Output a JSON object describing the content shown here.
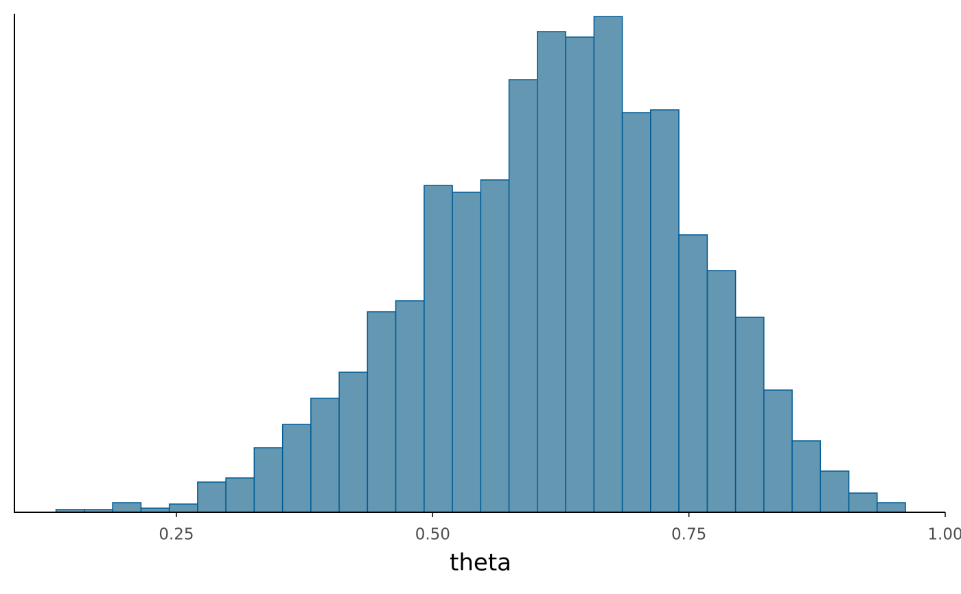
{
  "chart_data": {
    "type": "histogram",
    "x_label": "theta",
    "bins": [
      0.1326,
      0.1602,
      0.1878,
      0.2155,
      0.2431,
      0.2707,
      0.2983,
      0.3259,
      0.3536,
      0.3812,
      0.4088,
      0.4364,
      0.464,
      0.4917,
      0.5193,
      0.5469,
      0.5745,
      0.6021,
      0.6298,
      0.6574,
      0.685,
      0.7126,
      0.7402,
      0.7679,
      0.7955,
      0.8231,
      0.8507,
      0.8783,
      0.906,
      0.9336,
      0.9612
    ],
    "values": [
      2,
      2,
      7,
      3,
      6,
      22,
      25,
      47,
      64,
      83,
      102,
      146,
      154,
      238,
      233,
      242,
      315,
      350,
      346,
      361,
      291,
      293,
      202,
      176,
      142,
      89,
      52,
      30,
      14,
      7
    ],
    "color": "#6497b1",
    "edge_color": "#005b96",
    "xlim": [
      0.092,
      1.0
    ],
    "ylim": [
      0,
      363
    ],
    "xticks": [
      0.25,
      {
        "value": 0.5,
        "label": "0.50"
      },
      0.75,
      {
        "value": 1,
        "label": "1.00"
      }
    ],
    "grid": false
  }
}
